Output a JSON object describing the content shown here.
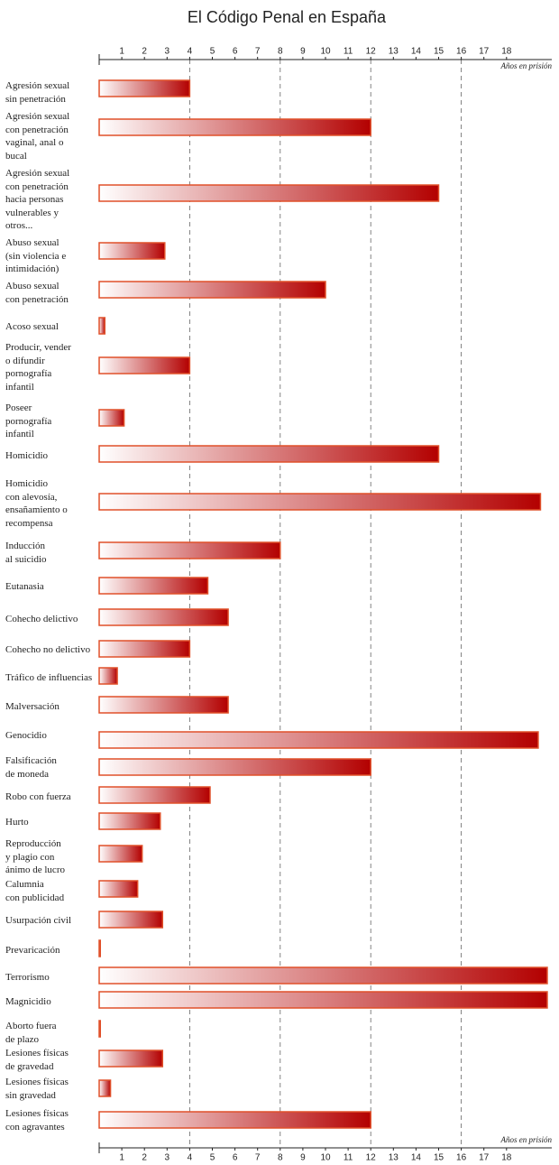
{
  "chart_data": {
    "type": "bar",
    "orientation": "horizontal",
    "title": "El Código Penal en España",
    "x_label": "Años en prisión",
    "categories": [
      "Agresión sexual\nsin penetración",
      "Agresión sexual\ncon penetración\nvaginal, anal o\nbucal",
      "Agresión sexual\ncon penetración\nhacia personas\nvulnerables y\notros...",
      "Abuso sexual\n(sin violencia e\n intimidación)",
      "Abuso sexual\n con penetración",
      "Acoso sexual",
      "Producir, vender\no difundir\npornografía\ninfantil",
      "Poseer\npornografía\ninfantil",
      "Homicidio",
      "Homicidio\ncon alevosía,\nensañamiento o\nrecompensa",
      "Inducción\nal suicidio",
      "Eutanasia",
      "Cohecho delictivo",
      "Cohecho no delictivo",
      "Tráfico de influencias",
      "Malversación",
      "Genocidio",
      "Falsificación\nde moneda",
      "Robo con fuerza",
      "Hurto",
      "Reproducción\ny plagio con\nánimo de lucro",
      "Calumnia\ncon publicidad",
      "Usurpación civil",
      "Prevaricación",
      "Terrorismo",
      "Magnicidio",
      "Aborto fuera\nde plazo",
      "Lesiones físicas\nde gravedad",
      "Lesiones físicas\nsin gravedad",
      "Lesiones físicas\ncon agravantes"
    ],
    "values": [
      4,
      12,
      15,
      2.9,
      10,
      0.25,
      4,
      1.1,
      15,
      19.5,
      8,
      4.8,
      5.7,
      4,
      0.8,
      5.7,
      19.4,
      12,
      4.9,
      2.7,
      1.9,
      1.7,
      2.8,
      0.05,
      19.8,
      19.8,
      0.05,
      2.8,
      0.5,
      12
    ],
    "color": "#b30000",
    "edge_color": "#e0502a",
    "xlim": [
      0,
      20
    ],
    "xticks": [
      1,
      2,
      3,
      4,
      5,
      6,
      7,
      8,
      9,
      10,
      11,
      12,
      13,
      14,
      15,
      16,
      17,
      18
    ],
    "grid_ticks": [
      4,
      8,
      12,
      16
    ]
  }
}
